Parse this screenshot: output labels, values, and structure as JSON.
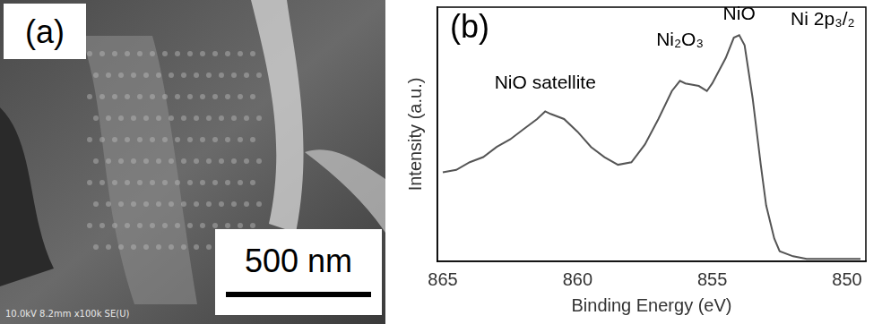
{
  "image_panel": {
    "label": "(a)",
    "scale_bar": "500 nm",
    "info": "10.0kV 8.2mm x100k SE(U)"
  },
  "chart_data": {
    "type": "line",
    "panel_label": "(b)",
    "x_label": "Binding Energy (eV)",
    "y_label": "Intensity (a.u.)",
    "x": [
      865.0,
      864.5,
      864.0,
      863.5,
      863.0,
      862.5,
      862.0,
      861.5,
      861.2,
      861.0,
      860.5,
      860.0,
      859.5,
      859.0,
      858.5,
      858.0,
      857.5,
      857.0,
      856.5,
      856.2,
      856.0,
      855.5,
      855.2,
      855.0,
      854.5,
      854.2,
      854.0,
      853.8,
      853.5,
      853.2,
      853.0,
      852.7,
      852.5,
      852.0,
      851.5,
      851.0,
      850.5,
      850.0,
      849.5
    ],
    "values": [
      35,
      36,
      39,
      41,
      45,
      48,
      52,
      56,
      59,
      58,
      56,
      51,
      45,
      41,
      38,
      39,
      46,
      56,
      67,
      71,
      70,
      69,
      67,
      70,
      80,
      88,
      89,
      85,
      64,
      38,
      22,
      9,
      4,
      2,
      1,
      1,
      1,
      1,
      1
    ],
    "color": "#555555",
    "marker": "none",
    "line_style": "solid",
    "xlim": [
      865.2,
      849.3
    ],
    "xticks": [
      865,
      860,
      855,
      850
    ],
    "ylim": [
      0,
      100
    ],
    "tick_labels": "x",
    "grid": false,
    "annotations": [
      {
        "text": "NiO satellite",
        "x": 861.2,
        "y": 70
      },
      {
        "text": "Ni₂O₃",
        "x": 856.2,
        "y": 87
      },
      {
        "text": "NiO",
        "x": 854.0,
        "y": 97
      },
      {
        "text": "Ni 2p₃/₂",
        "x": 850.9,
        "y": 95
      }
    ]
  }
}
